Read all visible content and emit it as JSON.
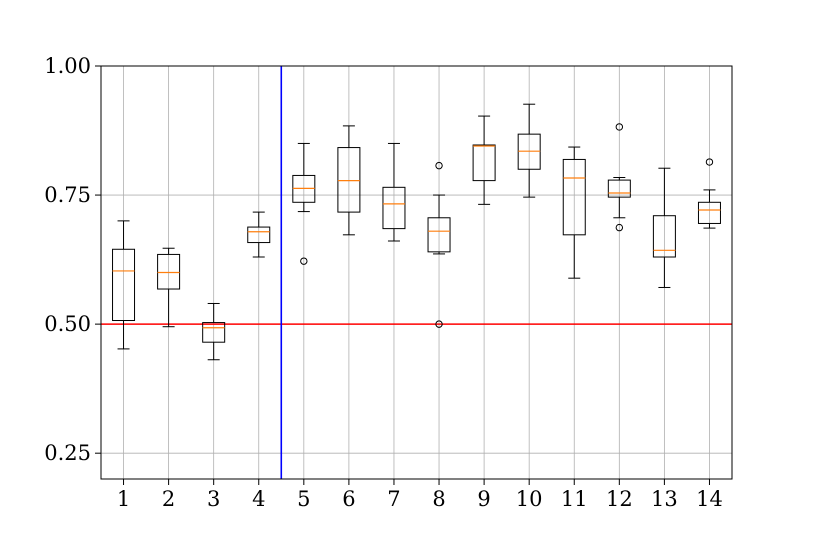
{
  "chart_data": {
    "type": "box",
    "categories": [
      "1",
      "2",
      "3",
      "4",
      "5",
      "6",
      "7",
      "8",
      "9",
      "10",
      "11",
      "12",
      "13",
      "14"
    ],
    "ylim": [
      0.2,
      1.0
    ],
    "yticks": [
      0.25,
      0.5,
      0.75,
      1.0
    ],
    "ytick_labels": [
      "0.25",
      "0.50",
      "0.75",
      "1.00"
    ],
    "grid": true,
    "boxes": [
      {
        "whislo": 0.452,
        "q1": 0.507,
        "med": 0.603,
        "q3": 0.645,
        "whishi": 0.7,
        "fliers": []
      },
      {
        "whislo": 0.495,
        "q1": 0.568,
        "med": 0.6,
        "q3": 0.635,
        "whishi": 0.647,
        "fliers": []
      },
      {
        "whislo": 0.431,
        "q1": 0.465,
        "med": 0.493,
        "q3": 0.503,
        "whishi": 0.54,
        "fliers": []
      },
      {
        "whislo": 0.63,
        "q1": 0.658,
        "med": 0.679,
        "q3": 0.688,
        "whishi": 0.717,
        "fliers": []
      },
      {
        "whislo": 0.718,
        "q1": 0.736,
        "med": 0.763,
        "q3": 0.788,
        "whishi": 0.85,
        "fliers": [
          0.622
        ]
      },
      {
        "whislo": 0.673,
        "q1": 0.717,
        "med": 0.778,
        "q3": 0.842,
        "whishi": 0.884,
        "fliers": []
      },
      {
        "whislo": 0.661,
        "q1": 0.685,
        "med": 0.733,
        "q3": 0.765,
        "whishi": 0.85,
        "fliers": []
      },
      {
        "whislo": 0.636,
        "q1": 0.64,
        "med": 0.68,
        "q3": 0.706,
        "whishi": 0.75,
        "fliers": [
          0.807,
          0.5
        ]
      },
      {
        "whislo": 0.732,
        "q1": 0.778,
        "med": 0.845,
        "q3": 0.847,
        "whishi": 0.903,
        "fliers": []
      },
      {
        "whislo": 0.746,
        "q1": 0.8,
        "med": 0.835,
        "q3": 0.868,
        "whishi": 0.926,
        "fliers": []
      },
      {
        "whislo": 0.589,
        "q1": 0.673,
        "med": 0.783,
        "q3": 0.819,
        "whishi": 0.843,
        "fliers": []
      },
      {
        "whislo": 0.706,
        "q1": 0.746,
        "med": 0.754,
        "q3": 0.779,
        "whishi": 0.784,
        "fliers": [
          0.882,
          0.687
        ]
      },
      {
        "whislo": 0.571,
        "q1": 0.63,
        "med": 0.643,
        "q3": 0.71,
        "whishi": 0.802,
        "fliers": []
      },
      {
        "whislo": 0.686,
        "q1": 0.695,
        "med": 0.721,
        "q3": 0.736,
        "whishi": 0.76,
        "fliers": [
          0.814
        ]
      }
    ],
    "reference_lines": [
      {
        "orientation": "horizontal",
        "value": 0.5,
        "color": "#ff0000"
      },
      {
        "orientation": "vertical",
        "value": 4.5,
        "color": "#0000ff"
      }
    ],
    "colors": {
      "box": "#000000",
      "median": "#ff7f0e",
      "grid": "#b0b0b0"
    }
  }
}
